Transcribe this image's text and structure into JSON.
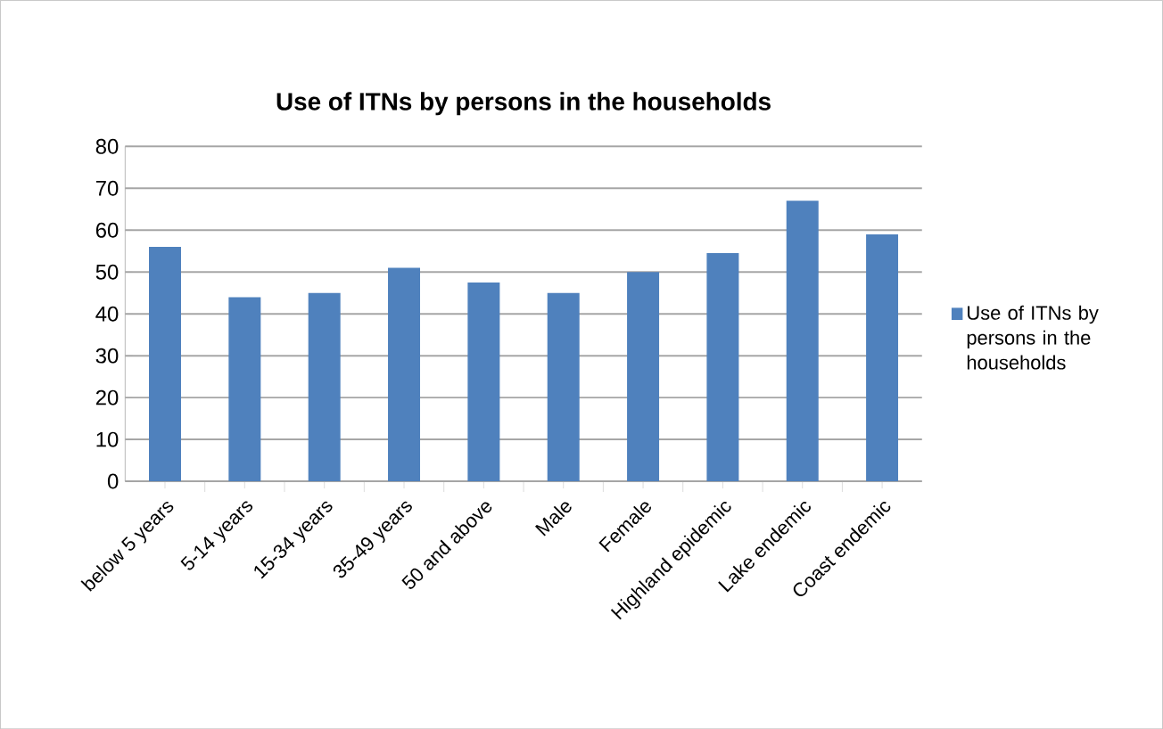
{
  "chart_data": {
    "type": "bar",
    "title": "Use of ITNs by persons in the households",
    "categories": [
      "below 5 years",
      "5-14 years",
      "15-34 years",
      "35-49 years",
      "50 and above",
      "Male",
      "Female",
      "Highland epidemic",
      "Lake endemic",
      "Coast endemic"
    ],
    "series": [
      {
        "name": "Use of ITNs by persons in the households",
        "color": "#4f81bd",
        "values": [
          56,
          44,
          45,
          51,
          47.5,
          45,
          50,
          54.5,
          67,
          59
        ]
      }
    ],
    "ylim": [
      0,
      80
    ],
    "yticks": [
      0,
      10,
      20,
      30,
      40,
      50,
      60,
      70,
      80
    ],
    "grid": "y",
    "legend": "right"
  }
}
